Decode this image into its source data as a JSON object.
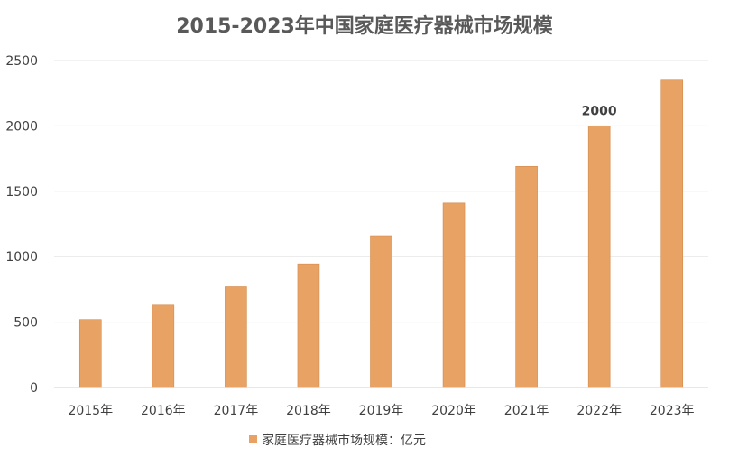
{
  "chart_data": {
    "type": "bar",
    "title": "2015-2023年中国家庭医疗器械市场规模",
    "categories": [
      "2015年",
      "2016年",
      "2017年",
      "2018年",
      "2019年",
      "2020年",
      "2021年",
      "2022年",
      "2023年"
    ],
    "series": [
      {
        "name": "家庭医疗器械市场规模：亿元",
        "values": [
          520,
          630,
          770,
          945,
          1160,
          1410,
          1690,
          2000,
          2350
        ],
        "color": "#E8A264"
      }
    ],
    "data_labels": [
      {
        "category": "2022年",
        "text": "2000"
      }
    ],
    "ylim": [
      0,
      2500
    ],
    "yticks": [
      "0",
      "500",
      "1000",
      "1500",
      "2000",
      "2500"
    ],
    "ytick_values": [
      0,
      500,
      1000,
      1500,
      2000,
      2500
    ],
    "xlabel": "",
    "ylabel": "",
    "grid": true,
    "legend_position": "bottom"
  }
}
